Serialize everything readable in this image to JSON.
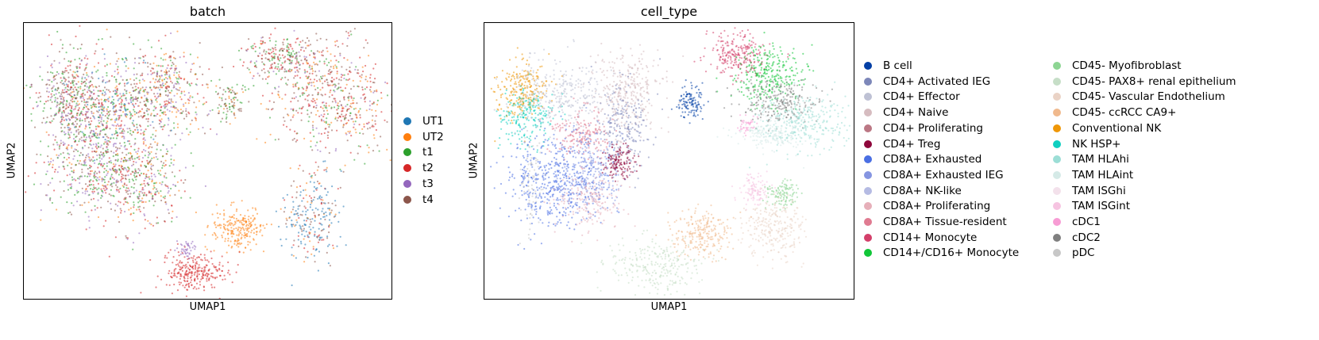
{
  "chart_data": [
    {
      "type": "scatter",
      "title": "batch",
      "xlabel": "UMAP1",
      "ylabel": "UMAP2",
      "grid": false,
      "legend_position": "right",
      "series": [
        {
          "name": "UT1",
          "color": "#1f77b4"
        },
        {
          "name": "UT2",
          "color": "#ff7f0e"
        },
        {
          "name": "t1",
          "color": "#2ca02c"
        },
        {
          "name": "t2",
          "color": "#d62728"
        },
        {
          "name": "t3",
          "color": "#9467bd"
        },
        {
          "name": "t4",
          "color": "#8c564b"
        }
      ]
    },
    {
      "type": "scatter",
      "title": "cell_type",
      "xlabel": "UMAP1",
      "ylabel": "UMAP2",
      "grid": false,
      "legend_position": "right",
      "series": [
        {
          "name": "B cell",
          "color": "#023fa5"
        },
        {
          "name": "CD4+ Activated IEG",
          "color": "#7d87b9"
        },
        {
          "name": "CD4+ Effector",
          "color": "#bec1d4"
        },
        {
          "name": "CD4+ Naive",
          "color": "#d6bcc0"
        },
        {
          "name": "CD4+ Proliferating",
          "color": "#bb7784"
        },
        {
          "name": "CD4+ Treg",
          "color": "#8e063b"
        },
        {
          "name": "CD8A+ Exhausted",
          "color": "#4a6fe3"
        },
        {
          "name": "CD8A+ Exhausted IEG",
          "color": "#8595e1"
        },
        {
          "name": "CD8A+ NK-like",
          "color": "#b5bbe3"
        },
        {
          "name": "CD8A+ Proliferating",
          "color": "#e6afb9"
        },
        {
          "name": "CD8A+ Tissue-resident",
          "color": "#e07b91"
        },
        {
          "name": "CD14+ Monocyte",
          "color": "#d33f6a"
        },
        {
          "name": "CD14+/CD16+ Monocyte",
          "color": "#11c638"
        },
        {
          "name": "CD45- Myofibroblast",
          "color": "#8dd593"
        },
        {
          "name": "CD45- PAX8+ renal epithelium",
          "color": "#c6dec7"
        },
        {
          "name": "CD45- Vascular Endothelium",
          "color": "#ead3c6"
        },
        {
          "name": "CD45- ccRCC CA9+",
          "color": "#f0b98d"
        },
        {
          "name": "Conventional NK",
          "color": "#ef9708"
        },
        {
          "name": "NK HSP+",
          "color": "#0fcfc0"
        },
        {
          "name": "TAM HLAhi",
          "color": "#9cded6"
        },
        {
          "name": "TAM HLAint",
          "color": "#d5eae7"
        },
        {
          "name": "TAM ISGhi",
          "color": "#f3e1eb"
        },
        {
          "name": "TAM ISGint",
          "color": "#f6c4e1"
        },
        {
          "name": "cDC1",
          "color": "#f79cd4"
        },
        {
          "name": "cDC2",
          "color": "#7f7f7f"
        },
        {
          "name": "pDC",
          "color": "#c7c7c7"
        }
      ]
    }
  ]
}
